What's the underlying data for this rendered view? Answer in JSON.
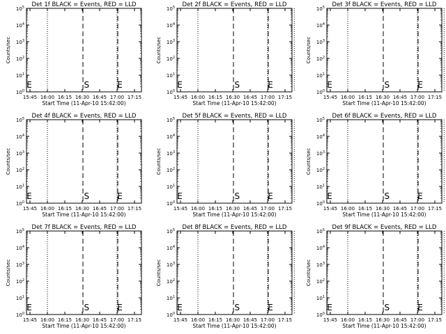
{
  "chart_data": [
    {
      "type": "line",
      "title": "Det 1f BLACK = Events, RED = LLD",
      "xlabel": "Start Time (11-Apr-10 15:42:00)",
      "ylabel": "Counts/sec",
      "x_ticks": [
        "15:45",
        "16:00",
        "16:15",
        "16:30",
        "16:45",
        "17:00",
        "17:15"
      ],
      "y_ticks": [
        "10^0",
        "10^1",
        "10^2",
        "10^3",
        "10^4",
        "10^5"
      ],
      "yscale": "log",
      "ylim": [
        1,
        100000
      ],
      "dotted_lines": [
        "16:00",
        "17:00"
      ],
      "dashed_lines": [
        "16:30",
        "17:00"
      ],
      "markers": [
        {
          "label": "E",
          "x": "15:42"
        },
        {
          "label": "S",
          "x": "16:32"
        },
        {
          "label": "E",
          "x": "17:00"
        }
      ]
    },
    {
      "type": "line",
      "title": "Det 2f BLACK = Events, RED = LLD",
      "xlabel": "Start Time (11-Apr-10 15:42:00)",
      "ylabel": "Counts/sec",
      "x_ticks": [
        "15:45",
        "16:00",
        "16:15",
        "16:30",
        "16:45",
        "17:00",
        "17:15"
      ],
      "y_ticks": [
        "10^0",
        "10^1",
        "10^2",
        "10^3",
        "10^4",
        "10^5"
      ],
      "yscale": "log",
      "ylim": [
        1,
        100000
      ],
      "dotted_lines": [
        "16:00",
        "17:00",
        "17:23"
      ],
      "dashed_lines": [
        "16:30",
        "17:00"
      ],
      "markers": [
        {
          "label": "E",
          "x": "15:42"
        },
        {
          "label": "S",
          "x": "16:32"
        },
        {
          "label": "E",
          "x": "17:00"
        }
      ]
    },
    {
      "type": "line",
      "title": "Det 3f BLACK = Events, RED = LLD",
      "xlabel": "Start Time (11-Apr-10 15:42:00)",
      "ylabel": "Counts/sec",
      "x_ticks": [
        "15:45",
        "16:00",
        "16:15",
        "16:30",
        "16:45",
        "17:00",
        "17:15"
      ],
      "y_ticks": [
        "10^0",
        "10^1",
        "10^2",
        "10^3",
        "10^4",
        "10^5"
      ],
      "yscale": "log",
      "ylim": [
        1,
        100000
      ],
      "dotted_lines": [
        "16:00",
        "17:00",
        "17:23"
      ],
      "dashed_lines": [
        "16:30",
        "17:00"
      ],
      "markers": [
        {
          "label": "E",
          "x": "15:42"
        },
        {
          "label": "S",
          "x": "16:32"
        },
        {
          "label": "E",
          "x": "17:00"
        }
      ]
    },
    {
      "type": "line",
      "title": "Det 4f BLACK = Events, RED = LLD",
      "xlabel": "Start Time (11-Apr-10 15:42:00)",
      "ylabel": "Counts/sec",
      "x_ticks": [
        "15:45",
        "16:00",
        "16:15",
        "16:30",
        "16:45",
        "17:00",
        "17:15"
      ],
      "y_ticks": [
        "10^0",
        "10^1",
        "10^2",
        "10^3",
        "10^4",
        "10^5"
      ],
      "yscale": "log",
      "ylim": [
        1,
        100000
      ],
      "dotted_lines": [
        "16:00",
        "17:00"
      ],
      "dashed_lines": [
        "16:30",
        "17:00"
      ],
      "markers": [
        {
          "label": "E",
          "x": "15:42"
        },
        {
          "label": "S",
          "x": "16:32"
        },
        {
          "label": "E",
          "x": "17:00"
        }
      ]
    },
    {
      "type": "line",
      "title": "Det 5f BLACK = Events, RED = LLD",
      "xlabel": "Start Time (11-Apr-10 15:42:00)",
      "ylabel": "Counts/sec",
      "x_ticks": [
        "15:45",
        "16:00",
        "16:15",
        "16:30",
        "16:45",
        "17:00",
        "17:15"
      ],
      "y_ticks": [
        "10^0",
        "10^1",
        "10^2",
        "10^3",
        "10^4",
        "10^5"
      ],
      "yscale": "log",
      "ylim": [
        1,
        100000
      ],
      "dotted_lines": [
        "16:00",
        "17:00",
        "17:23"
      ],
      "dashed_lines": [
        "16:30",
        "17:00"
      ],
      "markers": [
        {
          "label": "E",
          "x": "15:42"
        },
        {
          "label": "S",
          "x": "16:32"
        },
        {
          "label": "E",
          "x": "17:00"
        }
      ]
    },
    {
      "type": "line",
      "title": "Det 6f BLACK = Events, RED = LLD",
      "xlabel": "Start Time (11-Apr-10 15:42:00)",
      "ylabel": "Counts/sec",
      "x_ticks": [
        "15:45",
        "16:00",
        "16:15",
        "16:30",
        "16:45",
        "17:00",
        "17:15"
      ],
      "y_ticks": [
        "10^0",
        "10^1",
        "10^2",
        "10^3",
        "10^4",
        "10^5"
      ],
      "yscale": "log",
      "ylim": [
        1,
        100000
      ],
      "dotted_lines": [
        "16:00",
        "17:00",
        "17:23"
      ],
      "dashed_lines": [
        "16:30",
        "17:00"
      ],
      "markers": [
        {
          "label": "E",
          "x": "15:42"
        },
        {
          "label": "S",
          "x": "16:32"
        },
        {
          "label": "E",
          "x": "17:00"
        }
      ]
    },
    {
      "type": "line",
      "title": "Det 7f BLACK = Events, RED = LLD",
      "xlabel": "Start Time (11-Apr-10 15:42:00)",
      "ylabel": "Counts/sec",
      "x_ticks": [
        "15:45",
        "16:00",
        "16:15",
        "16:30",
        "16:45",
        "17:00",
        "17:15"
      ],
      "y_ticks": [
        "10^0",
        "10^1",
        "10^2",
        "10^3",
        "10^4",
        "10^5"
      ],
      "yscale": "log",
      "ylim": [
        1,
        100000
      ],
      "dotted_lines": [
        "16:00",
        "17:00"
      ],
      "dashed_lines": [
        "16:30",
        "17:00"
      ],
      "markers": [
        {
          "label": "E",
          "x": "15:42"
        },
        {
          "label": "S",
          "x": "16:32"
        },
        {
          "label": "E",
          "x": "17:00"
        }
      ]
    },
    {
      "type": "line",
      "title": "Det 8f BLACK = Events, RED = LLD",
      "xlabel": "Start Time (11-Apr-10 15:42:00)",
      "ylabel": "Counts/sec",
      "x_ticks": [
        "15:45",
        "16:00",
        "16:15",
        "16:30",
        "16:45",
        "17:00",
        "17:15"
      ],
      "y_ticks": [
        "10^0",
        "10^1",
        "10^2",
        "10^3",
        "10^4",
        "10^5"
      ],
      "yscale": "log",
      "ylim": [
        1,
        100000
      ],
      "dotted_lines": [
        "16:00",
        "17:00",
        "17:23"
      ],
      "dashed_lines": [
        "16:30",
        "17:00"
      ],
      "markers": [
        {
          "label": "E",
          "x": "15:42"
        },
        {
          "label": "S",
          "x": "16:32"
        },
        {
          "label": "E",
          "x": "17:00"
        }
      ]
    },
    {
      "type": "line",
      "title": "Det 9f BLACK = Events, RED = LLD",
      "xlabel": "Start Time (11-Apr-10 15:42:00)",
      "ylabel": "Counts/sec",
      "x_ticks": [
        "15:45",
        "16:00",
        "16:15",
        "16:30",
        "16:45",
        "17:00",
        "17:15"
      ],
      "y_ticks": [
        "10^0",
        "10^1",
        "10^2",
        "10^3",
        "10^4",
        "10^5"
      ],
      "yscale": "log",
      "ylim": [
        1,
        100000
      ],
      "dotted_lines": [
        "16:00",
        "17:00",
        "17:23"
      ],
      "dashed_lines": [
        "16:30",
        "17:00"
      ],
      "markers": [
        {
          "label": "E",
          "x": "15:42"
        },
        {
          "label": "S",
          "x": "16:32"
        },
        {
          "label": "E",
          "x": "17:00"
        }
      ]
    }
  ]
}
